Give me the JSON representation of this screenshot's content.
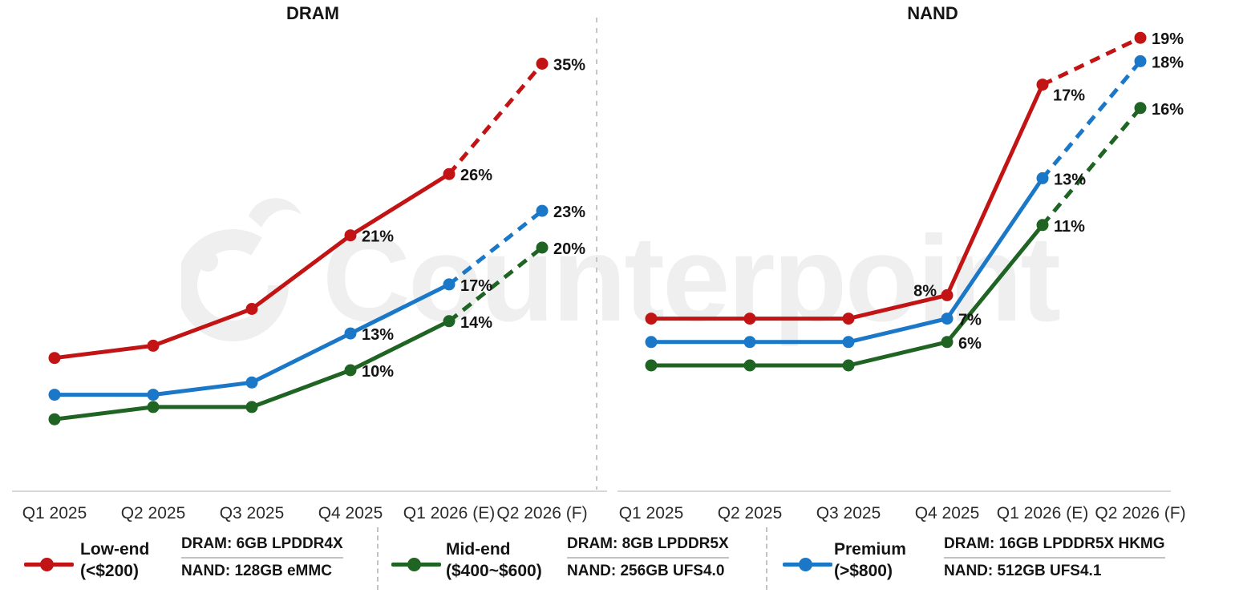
{
  "watermark": {
    "text": "Counterpoint"
  },
  "chart_data": [
    {
      "type": "line",
      "title": "DRAM",
      "unit": "%",
      "legend_position": "bottom",
      "categories": [
        "Q1 2025",
        "Q2 2025",
        "Q3 2025",
        "Q4 2025",
        "Q1 2026 (E)",
        "Q2 2026 (F)"
      ],
      "series": [
        {
          "name": "Low-end (<$200)",
          "color": "#c21414",
          "values": [
            11,
            12,
            15,
            21,
            26,
            35
          ],
          "point_labels": [
            "",
            "",
            "",
            "21%",
            "26%",
            "35%"
          ],
          "line_style": "solid, dashed forecast after Q1 2026 (E)"
        },
        {
          "name": "Mid-end ($400~$600)",
          "color": "#1f6423",
          "values": [
            6,
            7,
            7,
            10,
            14,
            20
          ],
          "point_labels": [
            "",
            "",
            "",
            "10%",
            "14%",
            "20%"
          ],
          "line_style": "solid, dashed forecast after Q1 2026 (E)"
        },
        {
          "name": "Premium (>$800)",
          "color": "#1b78c8",
          "values": [
            8,
            8,
            9,
            13,
            17,
            23
          ],
          "point_labels": [
            "",
            "",
            "",
            "13%",
            "17%",
            "23%"
          ],
          "line_style": "solid, dashed forecast after Q1 2026 (E)"
        }
      ]
    },
    {
      "type": "line",
      "title": "NAND",
      "unit": "%",
      "legend_position": "bottom",
      "categories": [
        "Q1 2025",
        "Q2 2025",
        "Q3 2025",
        "Q4 2025",
        "Q1 2026 (E)",
        "Q2 2026 (F)"
      ],
      "series": [
        {
          "name": "Low-end (<$200)",
          "color": "#c21414",
          "values": [
            7,
            7,
            7,
            8,
            17,
            19
          ],
          "point_labels": [
            "",
            "",
            "",
            "8%",
            "17%",
            "19%"
          ],
          "line_style": "solid, dashed forecast after Q1 2026 (E)"
        },
        {
          "name": "Mid-end ($400~$600)",
          "color": "#1f6423",
          "values": [
            5,
            5,
            5,
            6,
            11,
            16
          ],
          "point_labels": [
            "",
            "",
            "",
            "6%",
            "11%",
            "16%"
          ],
          "line_style": "solid, dashed forecast after Q1 2026 (E)"
        },
        {
          "name": "Premium (>$800)",
          "color": "#1b78c8",
          "values": [
            6,
            6,
            6,
            7,
            13,
            18
          ],
          "point_labels": [
            "",
            "",
            "",
            "7%",
            "13%",
            "18%"
          ],
          "line_style": "solid, dashed forecast after Q1 2026 (E)"
        }
      ]
    }
  ],
  "legend": {
    "items": [
      {
        "name": "Low-end",
        "range": "(<$200)",
        "color": "#c21414",
        "dram_spec": "DRAM: 6GB LPDDR4X",
        "nand_spec": "NAND: 128GB eMMC"
      },
      {
        "name": "Mid-end",
        "range": "($400~$600)",
        "color": "#1f6423",
        "dram_spec": "DRAM: 8GB LPDDR5X",
        "nand_spec": "NAND: 256GB UFS4.0"
      },
      {
        "name": "Premium",
        "range": "(>$800)",
        "color": "#1b78c8",
        "dram_spec": "DRAM: 16GB LPDDR5X HKMG",
        "nand_spec": "NAND: 512GB UFS4.1"
      }
    ]
  }
}
